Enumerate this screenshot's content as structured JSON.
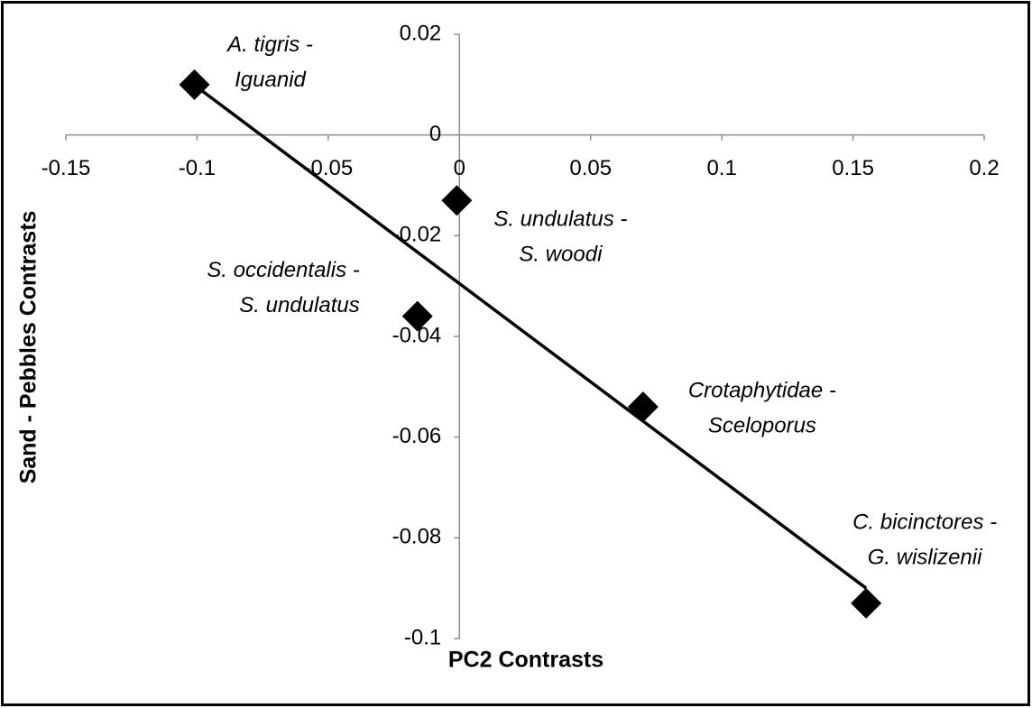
{
  "chart_data": {
    "type": "scatter",
    "x_label": "PC2 Contrasts",
    "y_label": "Sand - Pebbles Contrasts",
    "x": [
      -0.101,
      -0.001,
      -0.016,
      0.07,
      0.155
    ],
    "values": [
      0.01,
      -0.013,
      -0.036,
      -0.054,
      -0.093
    ],
    "point_labels": [
      [
        "A. tigris -",
        "Iguanid"
      ],
      [
        "S. undulatus -",
        "S. woodi"
      ],
      [
        "S. occidentalis -",
        "S. undulatus"
      ],
      [
        "Crotaphytidae -",
        "Sceloporus"
      ],
      [
        "C. bicinctores -",
        "G. wislizenii"
      ]
    ],
    "color": "#000000",
    "trendline": {
      "x": [
        -0.101,
        0.155
      ],
      "y": [
        0.0099,
        -0.09
      ]
    },
    "xlim": [
      -0.15,
      0.2
    ],
    "xticks": [
      -0.15,
      -0.1,
      -0.05,
      0,
      0.05,
      0.1,
      0.15,
      0.2
    ],
    "ylim": [
      -0.1,
      0.02
    ],
    "yticks": [
      0.02,
      0,
      -0.02,
      -0.04,
      -0.06,
      -0.08,
      -0.1
    ]
  }
}
